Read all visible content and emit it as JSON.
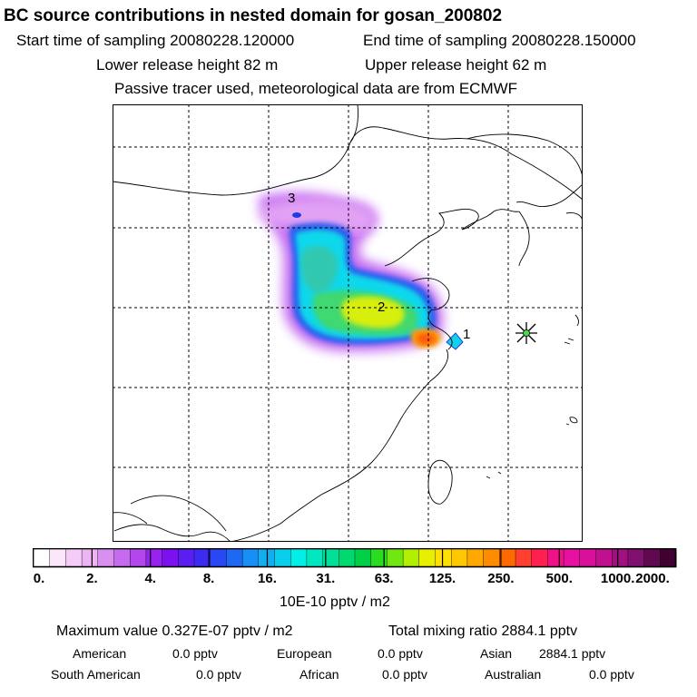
{
  "title": "BC  source contributions in nested domain for gosan_200802",
  "sampling": {
    "start": "Start time of sampling 20080228.120000",
    "end": "End time of sampling 20080228.150000"
  },
  "release": {
    "lower": "Lower release height   82 m",
    "upper": "Upper release height   62 m"
  },
  "tracer_note": "Passive tracer used, meteorological data are from ECMWF",
  "map": {
    "labels": [
      "1",
      "2",
      "3"
    ],
    "receptor_marker": "star-marker"
  },
  "colorbar": {
    "ticks": [
      "0.",
      "2.",
      "4.",
      "8.",
      "16.",
      "31.",
      "63.",
      "125.",
      "250.",
      "500.",
      "1000.",
      "2000."
    ],
    "units": "10E-10 pptv / m2",
    "colors": [
      "#ffffff",
      "#fbe6fb",
      "#f5ccf7",
      "#eeb3f4",
      "#d98ff0",
      "#c76bee",
      "#b247ee",
      "#9a22ee",
      "#7c10ee",
      "#5a1ef0",
      "#3c2cf2",
      "#2848f4",
      "#1e68f4",
      "#1690f4",
      "#10b0f0",
      "#08d0ec",
      "#00f0e8",
      "#00e8c0",
      "#00e098",
      "#00d870",
      "#00d048",
      "#28dc20",
      "#70e810",
      "#b0f000",
      "#e8f000",
      "#ffe000",
      "#ffc800",
      "#ffa800",
      "#ff8c00",
      "#ff6a00",
      "#ff4030",
      "#ff2050",
      "#f01088",
      "#e810a0",
      "#d8109c",
      "#c01090",
      "#a01080",
      "#801070",
      "#600850",
      "#400030"
    ]
  },
  "summary": {
    "max_value": "Maximum value  0.327E-07 pptv / m2",
    "total_mixing": "Total mixing ratio     2884.1 pptv",
    "regions": [
      {
        "name": "American",
        "value": "0.0 pptv"
      },
      {
        "name": "European",
        "value": "0.0 pptv"
      },
      {
        "name": "Asian",
        "value": "2884.1 pptv"
      },
      {
        "name": "South American",
        "value": "0.0 pptv"
      },
      {
        "name": "African",
        "value": "0.0 pptv"
      },
      {
        "name": "Australian",
        "value": "0.0 pptv"
      }
    ]
  }
}
